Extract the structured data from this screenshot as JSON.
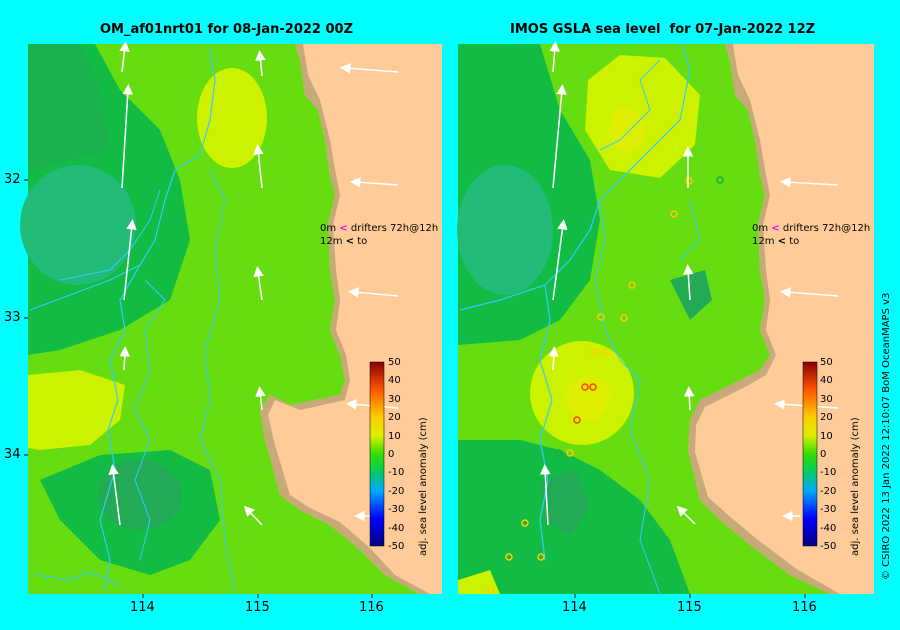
{
  "titles": {
    "left": "OM_af01nrt01 for 08-Jan-2022 00Z",
    "right": "IMOS GSLA sea level  for 07-Jan-2022 12Z"
  },
  "axes": {
    "y_ticks": [
      "32",
      "33",
      "34"
    ],
    "x_ticks": [
      "114",
      "115",
      "116"
    ]
  },
  "drifters": {
    "line1_prefix": "0m",
    "line1_text": "drifters 72h@12h",
    "line2_prefix": "12m",
    "line2_text": "to"
  },
  "colorbar": {
    "label": "adj. sea level anomaly (cm)",
    "ticks": [
      "50",
      "40",
      "30",
      "20",
      "10",
      "0",
      "-10",
      "-20",
      "-30",
      "-40",
      "-50"
    ]
  },
  "credit": "© CSIRO 2022   13 Jan 2022 12:10:07 BoM OceanMAPS v3",
  "colors": {
    "background": "#00ffff",
    "land": "#ffcc99",
    "shelf": "#c8a97a",
    "anomaly_green": "#66dd11",
    "anomaly_yellow": "#ccf200",
    "anomaly_dark": "#11bb44",
    "anomaly_teal": "#22bb77"
  }
}
